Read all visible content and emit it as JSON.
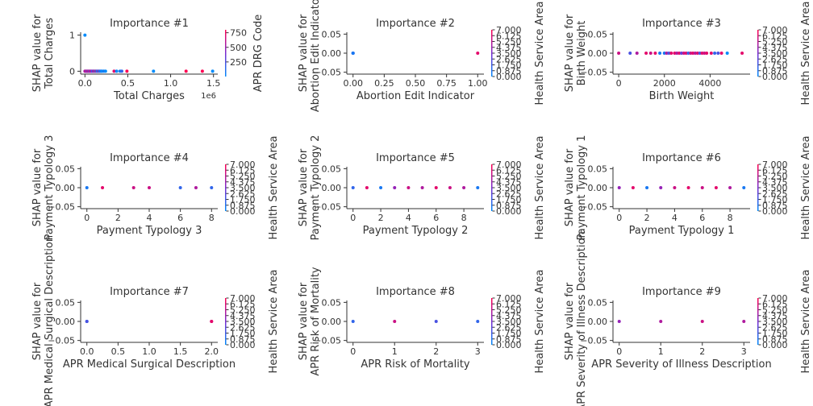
{
  "figure": {
    "title": "",
    "colors": {
      "low": "#008bfb",
      "high": "#ff0052",
      "axis": "#333333"
    }
  },
  "chart_data": [
    {
      "type": "scatter",
      "title": "Importance #1",
      "xlabel": "Total Charges",
      "ylabel": [
        "SHAP value for",
        "Total Charges"
      ],
      "x_offset_label": "1e6",
      "xlim": [
        -0.05,
        1.55
      ],
      "ylim": [
        -0.08,
        1.08
      ],
      "xticks": [
        0,
        0.5,
        1,
        1.5
      ],
      "xtick_labels": [
        "0.0",
        "0.5",
        "1.0",
        "1.5"
      ],
      "yticks": [
        0,
        1
      ],
      "ytick_labels": [
        "0",
        "1"
      ],
      "colorbar": {
        "label": "APR DRG Code",
        "range": [
          0,
          800
        ],
        "ticks": [
          250,
          500,
          750
        ],
        "tick_labels": [
          "250",
          "500",
          "750"
        ]
      },
      "points": [
        {
          "x": 0.0,
          "y": 1.0,
          "c": 0.0
        },
        {
          "x": 0.0,
          "y": 0.0,
          "c": 0.6
        },
        {
          "x": 0.01,
          "y": 0.0,
          "c": 0.9
        },
        {
          "x": 0.02,
          "y": 0.0,
          "c": 0.4
        },
        {
          "x": 0.03,
          "y": 0.0,
          "c": 0.7
        },
        {
          "x": 0.04,
          "y": 0.0,
          "c": 0.8
        },
        {
          "x": 0.05,
          "y": 0.0,
          "c": 0.3
        },
        {
          "x": 0.06,
          "y": 0.0,
          "c": 0.9
        },
        {
          "x": 0.07,
          "y": 0.0,
          "c": 0.5
        },
        {
          "x": 0.08,
          "y": 0.0,
          "c": 0.7
        },
        {
          "x": 0.09,
          "y": 0.0,
          "c": 0.2
        },
        {
          "x": 0.1,
          "y": 0.0,
          "c": 0.6
        },
        {
          "x": 0.11,
          "y": 0.0,
          "c": 0.8
        },
        {
          "x": 0.12,
          "y": 0.0,
          "c": 0.1
        },
        {
          "x": 0.13,
          "y": 0.0,
          "c": 0.9
        },
        {
          "x": 0.14,
          "y": 0.0,
          "c": 0.2
        },
        {
          "x": 0.15,
          "y": 0.0,
          "c": 0.1
        },
        {
          "x": 0.16,
          "y": 0.0,
          "c": 0.7
        },
        {
          "x": 0.17,
          "y": 0.0,
          "c": 0.1
        },
        {
          "x": 0.18,
          "y": 0.0,
          "c": 0.2
        },
        {
          "x": 0.19,
          "y": 0.0,
          "c": 0.1
        },
        {
          "x": 0.2,
          "y": 0.0,
          "c": 0.0
        },
        {
          "x": 0.22,
          "y": 0.0,
          "c": 0.1
        },
        {
          "x": 0.24,
          "y": 0.0,
          "c": 0.0
        },
        {
          "x": 0.34,
          "y": 0.0,
          "c": 0.9
        },
        {
          "x": 0.37,
          "y": 0.0,
          "c": 0.0
        },
        {
          "x": 0.41,
          "y": 0.0,
          "c": 0.1
        },
        {
          "x": 0.43,
          "y": 0.0,
          "c": 0.2
        },
        {
          "x": 0.49,
          "y": 0.0,
          "c": 1.0
        },
        {
          "x": 0.8,
          "y": 0.0,
          "c": 0.0
        },
        {
          "x": 1.18,
          "y": 0.0,
          "c": 1.0
        },
        {
          "x": 1.37,
          "y": 0.0,
          "c": 1.0
        },
        {
          "x": 1.49,
          "y": 0.0,
          "c": 0.0
        }
      ]
    },
    {
      "type": "scatter",
      "title": "Importance #2",
      "xlabel": "Abortion Edit Indicator",
      "ylabel": [
        "SHAP value for",
        "Abortion Edit Indicator"
      ],
      "xlim": [
        -0.05,
        1.05
      ],
      "ylim": [
        -0.055,
        0.055
      ],
      "xticks": [
        0,
        0.25,
        0.5,
        0.75,
        1
      ],
      "xtick_labels": [
        "0.00",
        "0.25",
        "0.50",
        "0.75",
        "1.00"
      ],
      "yticks": [
        -0.05,
        0,
        0.05
      ],
      "ytick_labels": [
        "−0.05",
        "0.00",
        "0.05"
      ],
      "colorbar": {
        "label": "Health Service Area",
        "range": [
          0,
          7
        ],
        "ticks": [
          0,
          0.875,
          1.75,
          2.625,
          3.5,
          4.375,
          5.25,
          6.125,
          7
        ],
        "tick_labels": [
          "0.000",
          "0.875",
          "1.750",
          "2.625",
          "3.500",
          "4.375",
          "5.250",
          "6.125",
          "7.000"
        ]
      },
      "points": [
        {
          "x": 0,
          "y": 0,
          "c": 0.0
        },
        {
          "x": 0,
          "y": 0,
          "c": 0.3
        },
        {
          "x": 0,
          "y": 0,
          "c": 0.1
        },
        {
          "x": 1,
          "y": 0,
          "c": 0.9
        }
      ]
    },
    {
      "type": "scatter",
      "title": "Importance #3",
      "xlabel": "Birth Weight",
      "ylabel": [
        "SHAP value for",
        "Birth Weight"
      ],
      "xlim": [
        -250,
        5750
      ],
      "ylim": [
        -0.055,
        0.055
      ],
      "xticks": [
        0,
        2000,
        4000
      ],
      "xtick_labels": [
        "0",
        "2000",
        "4000"
      ],
      "yticks": [
        -0.05,
        0,
        0.05
      ],
      "ytick_labels": [
        "−0.05",
        "0.00",
        "0.05"
      ],
      "colorbar": {
        "label": "Health Service Area",
        "range": [
          0,
          7
        ],
        "ticks": [
          0,
          0.875,
          1.75,
          2.625,
          3.5,
          4.375,
          5.25,
          6.125,
          7
        ],
        "tick_labels": [
          "0.000",
          "0.875",
          "1.750",
          "2.625",
          "3.500",
          "4.375",
          "5.250",
          "6.125",
          "7.000"
        ]
      },
      "points": [
        {
          "x": 0,
          "y": 0,
          "c": 0.8
        },
        {
          "x": 500,
          "y": 0,
          "c": 0.3
        },
        {
          "x": 800,
          "y": 0,
          "c": 0.7
        },
        {
          "x": 1200,
          "y": 0,
          "c": 0.9
        },
        {
          "x": 1400,
          "y": 0,
          "c": 0.8
        },
        {
          "x": 1600,
          "y": 0,
          "c": 0.9
        },
        {
          "x": 1800,
          "y": 0,
          "c": 0.1
        },
        {
          "x": 2000,
          "y": 0,
          "c": 0.1
        },
        {
          "x": 2100,
          "y": 0,
          "c": 0.7
        },
        {
          "x": 2200,
          "y": 0,
          "c": 0.3
        },
        {
          "x": 2300,
          "y": 0,
          "c": 0.9
        },
        {
          "x": 2450,
          "y": 0,
          "c": 0.9
        },
        {
          "x": 2550,
          "y": 0,
          "c": 0.7
        },
        {
          "x": 2650,
          "y": 0,
          "c": 0.9
        },
        {
          "x": 2750,
          "y": 0,
          "c": 0.4
        },
        {
          "x": 2850,
          "y": 0,
          "c": 0.8
        },
        {
          "x": 2950,
          "y": 0,
          "c": 0.9
        },
        {
          "x": 3050,
          "y": 0,
          "c": 0.2
        },
        {
          "x": 3150,
          "y": 0,
          "c": 0.8
        },
        {
          "x": 3250,
          "y": 0,
          "c": 0.9
        },
        {
          "x": 3350,
          "y": 0,
          "c": 0.7
        },
        {
          "x": 3450,
          "y": 0,
          "c": 0.9
        },
        {
          "x": 3550,
          "y": 0,
          "c": 0.3
        },
        {
          "x": 3650,
          "y": 0,
          "c": 0.9
        },
        {
          "x": 3750,
          "y": 0,
          "c": 0.8
        },
        {
          "x": 3850,
          "y": 0,
          "c": 0.9
        },
        {
          "x": 4050,
          "y": 0,
          "c": 0.9
        },
        {
          "x": 4200,
          "y": 0,
          "c": 0.2
        },
        {
          "x": 4350,
          "y": 0,
          "c": 0.3
        },
        {
          "x": 4500,
          "y": 0,
          "c": 0.9
        },
        {
          "x": 4750,
          "y": 0,
          "c": 0.0
        },
        {
          "x": 5400,
          "y": 0,
          "c": 0.9
        }
      ]
    },
    {
      "type": "scatter",
      "title": "Importance #4",
      "xlabel": "Payment Typology 3",
      "ylabel": [
        "SHAP value for",
        "Payment Typology 3"
      ],
      "xlim": [
        -0.4,
        8.4
      ],
      "ylim": [
        -0.055,
        0.055
      ],
      "xticks": [
        0,
        2,
        4,
        6,
        8
      ],
      "xtick_labels": [
        "0",
        "2",
        "4",
        "6",
        "8"
      ],
      "yticks": [
        -0.05,
        0,
        0.05
      ],
      "ytick_labels": [
        "−0.05",
        "0.00",
        "0.05"
      ],
      "colorbar": {
        "label": "Health Service Area",
        "range": [
          0,
          7
        ],
        "ticks": [
          0,
          0.875,
          1.75,
          2.625,
          3.5,
          4.375,
          5.25,
          6.125,
          7
        ],
        "tick_labels": [
          "0.000",
          "0.875",
          "1.750",
          "2.625",
          "3.500",
          "4.375",
          "5.250",
          "6.125",
          "7.000"
        ]
      },
      "points": [
        {
          "x": 0,
          "y": 0,
          "c": 0.1
        },
        {
          "x": 1,
          "y": 0,
          "c": 0.9
        },
        {
          "x": 3,
          "y": 0,
          "c": 0.8
        },
        {
          "x": 4,
          "y": 0,
          "c": 0.8
        },
        {
          "x": 6,
          "y": 0,
          "c": 0.2
        },
        {
          "x": 7,
          "y": 0,
          "c": 0.7
        },
        {
          "x": 8,
          "y": 0,
          "c": 0.2
        }
      ]
    },
    {
      "type": "scatter",
      "title": "Importance #5",
      "xlabel": "Payment Typology 2",
      "ylabel": [
        "SHAP value for",
        "Payment Typology 2"
      ],
      "xlim": [
        -0.45,
        9.45
      ],
      "ylim": [
        -0.055,
        0.055
      ],
      "xticks": [
        0,
        2,
        4,
        6,
        8
      ],
      "xtick_labels": [
        "0",
        "2",
        "4",
        "6",
        "8"
      ],
      "yticks": [
        -0.05,
        0,
        0.05
      ],
      "ytick_labels": [
        "−0.05",
        "0.00",
        "0.05"
      ],
      "colorbar": {
        "label": "Health Service Area",
        "range": [
          0,
          7
        ],
        "ticks": [
          0,
          0.875,
          1.75,
          2.625,
          3.5,
          4.375,
          5.25,
          6.125,
          7
        ],
        "tick_labels": [
          "0.000",
          "0.875",
          "1.750",
          "2.625",
          "3.500",
          "4.375",
          "5.250",
          "6.125",
          "7.000"
        ]
      },
      "points": [
        {
          "x": 0,
          "y": 0,
          "c": 0.2
        },
        {
          "x": 1,
          "y": 0,
          "c": 0.9
        },
        {
          "x": 2,
          "y": 0,
          "c": 0.1
        },
        {
          "x": 3,
          "y": 0,
          "c": 0.6
        },
        {
          "x": 4,
          "y": 0,
          "c": 0.8
        },
        {
          "x": 5,
          "y": 0,
          "c": 0.7
        },
        {
          "x": 6,
          "y": 0,
          "c": 0.9
        },
        {
          "x": 7,
          "y": 0,
          "c": 0.8
        },
        {
          "x": 8,
          "y": 0,
          "c": 0.7
        },
        {
          "x": 9,
          "y": 0,
          "c": 0.1
        }
      ]
    },
    {
      "type": "scatter",
      "title": "Importance #6",
      "xlabel": "Payment Typology 1",
      "ylabel": [
        "SHAP value for",
        "Payment Typology 1"
      ],
      "xlim": [
        -0.45,
        9.45
      ],
      "ylim": [
        -0.055,
        0.055
      ],
      "xticks": [
        0,
        2,
        4,
        6,
        8
      ],
      "xtick_labels": [
        "0",
        "2",
        "4",
        "6",
        "8"
      ],
      "yticks": [
        -0.05,
        0,
        0.05
      ],
      "ytick_labels": [
        "−0.05",
        "0.00",
        "0.05"
      ],
      "colorbar": {
        "label": "Health Service Area",
        "range": [
          0,
          7
        ],
        "ticks": [
          0,
          0.875,
          1.75,
          2.625,
          3.5,
          4.375,
          5.25,
          6.125,
          7
        ],
        "tick_labels": [
          "0.000",
          "0.875",
          "1.750",
          "2.625",
          "3.500",
          "4.375",
          "5.250",
          "6.125",
          "7.000"
        ]
      },
      "points": [
        {
          "x": 0,
          "y": 0,
          "c": 0.6
        },
        {
          "x": 1,
          "y": 0,
          "c": 0.9
        },
        {
          "x": 2,
          "y": 0,
          "c": 0.1
        },
        {
          "x": 3,
          "y": 0,
          "c": 0.6
        },
        {
          "x": 4,
          "y": 0,
          "c": 0.8
        },
        {
          "x": 5,
          "y": 0,
          "c": 0.9
        },
        {
          "x": 6,
          "y": 0,
          "c": 0.8
        },
        {
          "x": 7,
          "y": 0,
          "c": 0.9
        },
        {
          "x": 8,
          "y": 0,
          "c": 0.7
        },
        {
          "x": 9,
          "y": 0,
          "c": 0.1
        }
      ]
    },
    {
      "type": "scatter",
      "title": "Importance #7",
      "xlabel": "APR Medical Surgical Description",
      "ylabel": [
        "SHAP value for",
        "APR Medical Surgical Description"
      ],
      "xlim": [
        -0.1,
        2.1
      ],
      "ylim": [
        -0.055,
        0.055
      ],
      "xticks": [
        0,
        0.5,
        1,
        1.5,
        2
      ],
      "xtick_labels": [
        "0.0",
        "0.5",
        "1.0",
        "1.5",
        "2.0"
      ],
      "yticks": [
        -0.05,
        0,
        0.05
      ],
      "ytick_labels": [
        "−0.05",
        "0.00",
        "0.05"
      ],
      "colorbar": {
        "label": "Health Service Area",
        "range": [
          0,
          7
        ],
        "ticks": [
          0,
          0.875,
          1.75,
          2.625,
          3.5,
          4.375,
          5.25,
          6.125,
          7
        ],
        "tick_labels": [
          "0.000",
          "0.875",
          "1.750",
          "2.625",
          "3.500",
          "4.375",
          "5.250",
          "6.125",
          "7.000"
        ]
      },
      "points": [
        {
          "x": 0,
          "y": 0,
          "c": 0.1
        },
        {
          "x": 0,
          "y": 0,
          "c": 0.3
        },
        {
          "x": 2,
          "y": 0,
          "c": 0.8
        },
        {
          "x": 2,
          "y": 0,
          "c": 0.9
        }
      ]
    },
    {
      "type": "scatter",
      "title": "Importance #8",
      "xlabel": "APR Risk of Mortality",
      "ylabel": [
        "SHAP value for",
        "APR Risk of Mortality"
      ],
      "xlim": [
        -0.15,
        3.15
      ],
      "ylim": [
        -0.055,
        0.055
      ],
      "xticks": [
        0,
        1,
        2,
        3
      ],
      "xtick_labels": [
        "0",
        "1",
        "2",
        "3"
      ],
      "yticks": [
        -0.05,
        0,
        0.05
      ],
      "ytick_labels": [
        "−0.05",
        "0.00",
        "0.05"
      ],
      "colorbar": {
        "label": "Health Service Area",
        "range": [
          0,
          7
        ],
        "ticks": [
          0,
          0.875,
          1.75,
          2.625,
          3.5,
          4.375,
          5.25,
          6.125,
          7
        ],
        "tick_labels": [
          "0.000",
          "0.875",
          "1.750",
          "2.625",
          "3.500",
          "4.375",
          "5.250",
          "6.125",
          "7.000"
        ]
      },
      "points": [
        {
          "x": 0,
          "y": 0,
          "c": 0.2
        },
        {
          "x": 1,
          "y": 0,
          "c": 0.8
        },
        {
          "x": 2,
          "y": 0,
          "c": 0.3
        },
        {
          "x": 3,
          "y": 0,
          "c": 0.2
        }
      ]
    },
    {
      "type": "scatter",
      "title": "Importance #9",
      "xlabel": "APR Severity of Illness Description",
      "ylabel": [
        "SHAP value for",
        "APR Severity of Illness Description"
      ],
      "xlim": [
        -0.15,
        3.15
      ],
      "ylim": [
        -0.055,
        0.055
      ],
      "xticks": [
        0,
        1,
        2,
        3
      ],
      "xtick_labels": [
        "0",
        "1",
        "2",
        "3"
      ],
      "yticks": [
        -0.05,
        0,
        0.05
      ],
      "ytick_labels": [
        "−0.05",
        "0.00",
        "0.05"
      ],
      "colorbar": {
        "label": "Health Service Area",
        "range": [
          0,
          7
        ],
        "ticks": [
          0,
          0.875,
          1.75,
          2.625,
          3.5,
          4.375,
          5.25,
          6.125,
          7
        ],
        "tick_labels": [
          "0.000",
          "0.875",
          "1.750",
          "2.625",
          "3.500",
          "4.375",
          "5.250",
          "6.125",
          "7.000"
        ]
      },
      "points": [
        {
          "x": 0,
          "y": 0,
          "c": 0.6
        },
        {
          "x": 1,
          "y": 0,
          "c": 0.7
        },
        {
          "x": 2,
          "y": 0,
          "c": 0.8
        },
        {
          "x": 3,
          "y": 0,
          "c": 0.7
        }
      ]
    }
  ]
}
